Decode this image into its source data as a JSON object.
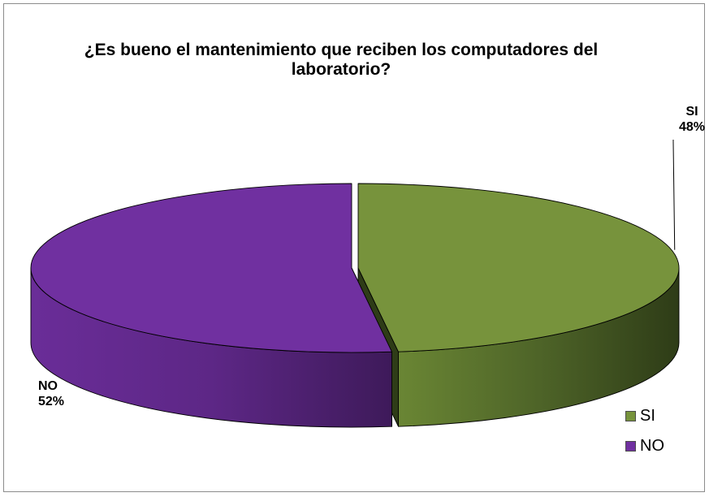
{
  "chart_data": {
    "type": "pie",
    "title": "¿Es bueno el mantenimiento que reciben los computadores del laboratorio?",
    "categories": [
      "SI",
      "NO"
    ],
    "values": [
      48,
      52
    ],
    "labels": [
      {
        "category": "SI",
        "percent": "48%"
      },
      {
        "category": "NO",
        "percent": "52%"
      }
    ],
    "colors": {
      "SI": "#77933c",
      "NO": "#7030a0"
    },
    "legend_position": "bottom-right",
    "style": "3d-exploded"
  }
}
